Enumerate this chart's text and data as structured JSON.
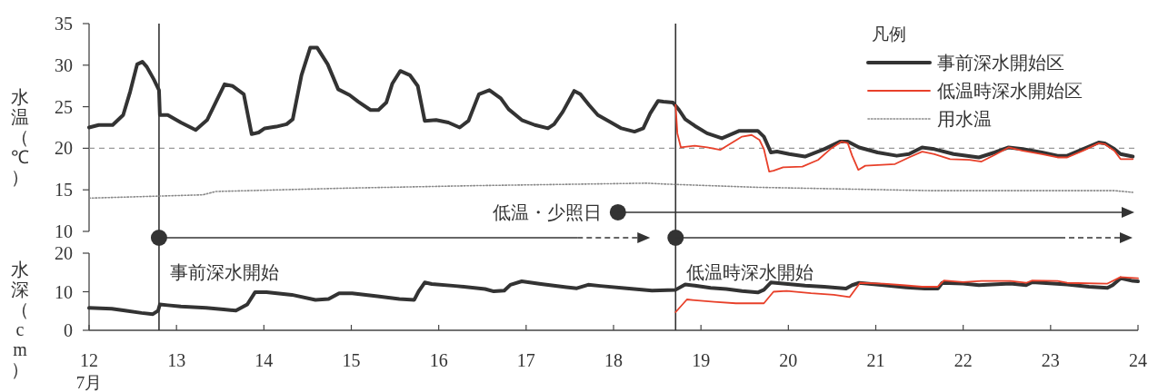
{
  "chart_data": [
    {
      "type": "line",
      "ylabel": "水温（℃）",
      "xlim": [
        12,
        24
      ],
      "ylim": [
        10,
        35
      ],
      "yticks": [
        10,
        15,
        20,
        25,
        30,
        35
      ],
      "tick_labels": "y",
      "grid": false,
      "marker": "none",
      "legend": "top right",
      "legend_title": "凡例",
      "series": [
        {
          "name": "事前深水開始区",
          "color": "#333333",
          "x": [
            12.0,
            12.11,
            12.27,
            12.39,
            12.47,
            12.55,
            12.61,
            12.66,
            12.74,
            12.8,
            12.81,
            12.9,
            13.05,
            13.22,
            13.35,
            13.55,
            13.64,
            13.77,
            13.86,
            13.94,
            14.01,
            14.14,
            14.26,
            14.33,
            14.43,
            14.53,
            14.61,
            14.73,
            14.85,
            14.98,
            15.08,
            15.22,
            15.31,
            15.4,
            15.47,
            15.56,
            15.67,
            15.76,
            15.84,
            15.97,
            16.11,
            16.24,
            16.34,
            16.46,
            16.58,
            16.71,
            16.8,
            16.95,
            17.1,
            17.25,
            17.32,
            17.42,
            17.55,
            17.62,
            17.72,
            17.82,
            17.94,
            18.09,
            18.24,
            18.34,
            18.42,
            18.51,
            18.57,
            18.68,
            18.75,
            18.82,
            18.93,
            19.07,
            19.24,
            19.44,
            19.65,
            19.72,
            19.8,
            19.87,
            20.01,
            20.19,
            20.41,
            20.59,
            20.68,
            20.81,
            21.02,
            21.24,
            21.38,
            21.53,
            21.67,
            21.89,
            22.18,
            22.36,
            22.52,
            22.68,
            22.9,
            23.08,
            23.19,
            23.37,
            23.55,
            23.62,
            23.73,
            23.8,
            23.94
          ],
          "values": [
            22.5,
            22.8,
            22.8,
            24.0,
            26.8,
            30.1,
            30.4,
            29.8,
            28.3,
            27.0,
            24.0,
            24.0,
            23.1,
            22.2,
            23.4,
            27.7,
            27.5,
            26.5,
            21.7,
            21.9,
            22.4,
            22.6,
            22.9,
            23.5,
            28.8,
            32.1,
            32.1,
            30.1,
            27.1,
            26.4,
            25.6,
            24.6,
            24.6,
            25.5,
            27.8,
            29.3,
            28.8,
            27.5,
            23.3,
            23.4,
            23.1,
            22.5,
            23.3,
            26.5,
            27.0,
            26.0,
            24.7,
            23.4,
            22.8,
            22.4,
            22.9,
            24.4,
            26.9,
            26.5,
            25.2,
            24.0,
            23.3,
            22.4,
            22.0,
            22.4,
            24.2,
            25.7,
            25.6,
            25.5,
            24.6,
            23.5,
            22.7,
            21.8,
            21.2,
            22.1,
            22.1,
            21.4,
            19.5,
            19.6,
            19.3,
            19.0,
            19.9,
            20.8,
            20.8,
            20.1,
            19.5,
            19.1,
            19.3,
            20.1,
            19.9,
            19.3,
            18.9,
            19.5,
            20.1,
            19.9,
            19.5,
            19.1,
            19.1,
            19.9,
            20.7,
            20.6,
            19.9,
            19.3,
            19.0
          ]
        },
        {
          "name": "低温時深水開始区",
          "color": "#e8402a",
          "x": [
            18.71,
            18.73,
            18.77,
            18.93,
            19.07,
            19.22,
            19.33,
            19.47,
            19.58,
            19.67,
            19.72,
            19.78,
            19.83,
            19.94,
            20.16,
            20.34,
            20.48,
            20.61,
            20.68,
            20.73,
            20.8,
            20.88,
            21.22,
            21.38,
            21.53,
            21.67,
            21.85,
            22.07,
            22.21,
            22.36,
            22.52,
            22.68,
            22.9,
            23.08,
            23.19,
            23.37,
            23.55,
            23.62,
            23.73,
            23.8,
            23.94
          ],
          "values": [
            25.2,
            21.8,
            20.1,
            20.3,
            20.1,
            19.8,
            20.5,
            21.4,
            21.6,
            21.0,
            19.9,
            17.2,
            17.3,
            17.7,
            17.8,
            18.6,
            19.9,
            20.8,
            20.6,
            19.1,
            17.4,
            17.9,
            18.1,
            18.9,
            19.6,
            19.3,
            18.7,
            18.6,
            18.4,
            19.2,
            20.1,
            19.7,
            19.3,
            18.9,
            18.9,
            19.7,
            20.6,
            20.5,
            19.7,
            18.7,
            18.7
          ]
        },
        {
          "name": "用水温",
          "color": "#8a8a8a",
          "line_style": "dotted",
          "x": [
            12.0,
            13.3,
            13.45,
            14.93,
            15.42,
            16.4,
            18.38,
            18.57,
            19.65,
            21.64,
            23.73,
            23.94
          ],
          "values": [
            14.0,
            14.4,
            14.8,
            15.2,
            15.3,
            15.5,
            15.8,
            15.7,
            15.3,
            14.9,
            14.9,
            14.7
          ]
        }
      ],
      "ref_lines": [
        {
          "axis": "y",
          "value": 20,
          "color": "#999999",
          "line_style": "dashed"
        },
        {
          "axis": "x",
          "value": 12.8,
          "color": "#333333"
        },
        {
          "axis": "x",
          "value": 18.71,
          "color": "#333333"
        }
      ],
      "annotations": [
        {
          "text": "低温・少照日",
          "x": 18.05,
          "y": 12.3
        }
      ]
    },
    {
      "type": "line",
      "ylabel": "水深（cm）",
      "xlabel": "7月",
      "xlim": [
        12,
        24
      ],
      "xticks": [
        12,
        13,
        14,
        15,
        16,
        17,
        18,
        19,
        20,
        21,
        22,
        23,
        24
      ],
      "ylim": [
        0,
        20
      ],
      "yticks": [
        0,
        10,
        20
      ],
      "grid": false,
      "marker": "none",
      "series": [
        {
          "color": "#333333",
          "x": [
            12.0,
            12.26,
            12.41,
            12.6,
            12.73,
            12.79,
            12.81,
            12.9,
            13.05,
            13.34,
            13.54,
            13.68,
            13.81,
            13.9,
            14.03,
            14.32,
            14.59,
            14.74,
            14.86,
            15.01,
            15.3,
            15.55,
            15.72,
            15.77,
            15.84,
            15.92,
            16.19,
            16.53,
            16.63,
            16.75,
            16.82,
            16.95,
            17.17,
            17.46,
            17.58,
            17.71,
            17.85,
            18.15,
            18.44,
            18.71,
            18.82,
            18.93,
            19.11,
            19.29,
            19.47,
            19.65,
            19.72,
            19.8,
            19.94,
            20.19,
            20.41,
            20.66,
            20.73,
            20.81,
            21.09,
            21.35,
            21.56,
            21.71,
            21.76,
            22.0,
            22.18,
            22.54,
            22.72,
            22.79,
            23.19,
            23.44,
            23.65,
            23.71,
            23.8,
            23.94,
            24.0
          ],
          "values": [
            5.8,
            5.6,
            5.1,
            4.5,
            4.2,
            5.1,
            6.7,
            6.5,
            6.2,
            5.8,
            5.4,
            5.1,
            6.7,
            9.9,
            9.9,
            9.2,
            7.9,
            8.1,
            9.6,
            9.6,
            8.8,
            8.1,
            7.9,
            10.1,
            12.4,
            12.0,
            11.5,
            10.7,
            10.1,
            10.3,
            11.8,
            12.7,
            12.0,
            11.2,
            10.9,
            11.8,
            11.5,
            10.9,
            10.3,
            10.5,
            11.9,
            11.6,
            11.0,
            10.7,
            10.2,
            9.8,
            10.5,
            12.4,
            12.1,
            11.6,
            11.3,
            10.8,
            11.7,
            12.3,
            11.7,
            11.1,
            10.8,
            10.8,
            12.3,
            12.1,
            11.7,
            12.1,
            11.7,
            12.5,
            11.9,
            11.3,
            11.0,
            11.7,
            13.5,
            12.8,
            12.7
          ]
        },
        {
          "color": "#e8402a",
          "x": [
            18.71,
            18.84,
            18.93,
            19.15,
            19.4,
            19.72,
            19.83,
            19.98,
            20.26,
            20.52,
            20.7,
            20.82,
            21.09,
            21.31,
            21.53,
            21.71,
            21.78,
            22.0,
            22.21,
            22.54,
            22.72,
            22.79,
            23.08,
            23.19,
            23.65,
            23.8,
            24.0
          ],
          "values": [
            4.7,
            8.0,
            7.8,
            7.4,
            7.0,
            7.0,
            10.0,
            10.2,
            9.6,
            9.2,
            8.6,
            12.3,
            12.1,
            11.7,
            11.3,
            11.3,
            12.9,
            12.5,
            12.8,
            12.8,
            12.3,
            12.9,
            12.8,
            12.3,
            12.1,
            13.8,
            13.5
          ]
        }
      ],
      "ref_lines": [
        {
          "axis": "x",
          "value": 12.8,
          "label": "事前深水開始",
          "color": "#333333"
        },
        {
          "axis": "x",
          "value": 18.71,
          "label": "低温時深水開始",
          "color": "#333333"
        }
      ]
    }
  ]
}
